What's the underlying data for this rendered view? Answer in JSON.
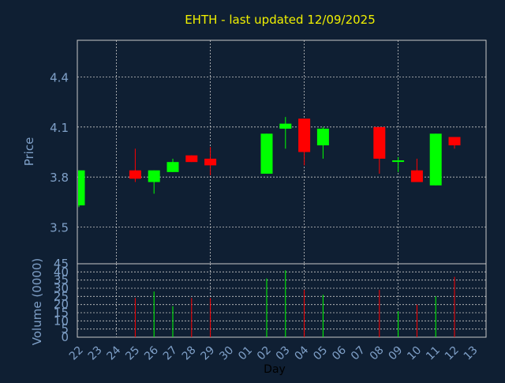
{
  "colors": {
    "background": "#0f1f33",
    "grid": "#c8c8c8",
    "title": "#f0f000",
    "axis_text": "#7fa0c8",
    "xlabel_text": "#000000",
    "up": "#00ff00",
    "down": "#ff0000"
  },
  "chart_data": {
    "type": "candlestick",
    "title": "EHTH - last updated 12/09/2025",
    "xlabel": "Day",
    "price_panel": {
      "ylabel": "Price",
      "ylim": [
        3.28,
        4.62
      ],
      "yticks": [
        3.5,
        3.8,
        4.1,
        4.4
      ],
      "ytick_labels": [
        "3.5",
        "3.8",
        "4.1",
        "4.4"
      ]
    },
    "volume_panel": {
      "ylabel": "Volume (0000)",
      "ylim": [
        0,
        45
      ],
      "yticks": [
        0,
        5,
        10,
        15,
        20,
        25,
        30,
        35,
        40,
        45
      ],
      "ytick_labels": [
        "0",
        "5",
        "10",
        "15",
        "20",
        "25",
        "30",
        "35",
        "40",
        "45"
      ]
    },
    "x_tick_labels": [
      "22",
      "23",
      "24",
      "25",
      "26",
      "27",
      "28",
      "29",
      "30",
      "01",
      "02",
      "03",
      "04",
      "05",
      "06",
      "07",
      "08",
      "09",
      "10",
      "11",
      "12",
      "13"
    ],
    "candles": [
      {
        "slot": 0,
        "open": 3.63,
        "high": 3.84,
        "low": 3.62,
        "close": 3.84,
        "volume": null
      },
      {
        "slot": 3,
        "open": 3.84,
        "high": 3.97,
        "low": 3.77,
        "close": 3.79,
        "volume": 24
      },
      {
        "slot": 4,
        "open": 3.77,
        "high": 3.84,
        "low": 3.7,
        "close": 3.84,
        "volume": 28
      },
      {
        "slot": 5,
        "open": 3.83,
        "high": 3.91,
        "low": 3.83,
        "close": 3.89,
        "volume": 19
      },
      {
        "slot": 6,
        "open": 3.93,
        "high": 3.93,
        "low": 3.89,
        "close": 3.89,
        "volume": 24
      },
      {
        "slot": 7,
        "open": 3.91,
        "high": 3.98,
        "low": 3.81,
        "close": 3.87,
        "volume": 24
      },
      {
        "slot": 10,
        "open": 3.82,
        "high": 4.06,
        "low": 3.82,
        "close": 4.06,
        "volume": 36
      },
      {
        "slot": 11,
        "open": 4.09,
        "high": 4.16,
        "low": 3.97,
        "close": 4.12,
        "volume": 41
      },
      {
        "slot": 12,
        "open": 4.15,
        "high": 4.15,
        "low": 3.87,
        "close": 3.95,
        "volume": 29
      },
      {
        "slot": 13,
        "open": 3.99,
        "high": 4.1,
        "low": 3.91,
        "close": 4.09,
        "volume": 26
      },
      {
        "slot": 16,
        "open": 4.1,
        "high": 4.1,
        "low": 3.82,
        "close": 3.91,
        "volume": 29
      },
      {
        "slot": 17,
        "open": 3.9,
        "high": 3.92,
        "low": 3.83,
        "close": 3.9,
        "volume": 16
      },
      {
        "slot": 18,
        "open": 3.84,
        "high": 3.91,
        "low": 3.77,
        "close": 3.77,
        "volume": 20
      },
      {
        "slot": 19,
        "open": 3.75,
        "high": 4.06,
        "low": 3.75,
        "close": 4.06,
        "volume": 25
      },
      {
        "slot": 20,
        "open": 4.04,
        "high": 4.04,
        "low": 3.97,
        "close": 3.99,
        "volume": 37
      }
    ],
    "grid": true,
    "legend": "none"
  }
}
